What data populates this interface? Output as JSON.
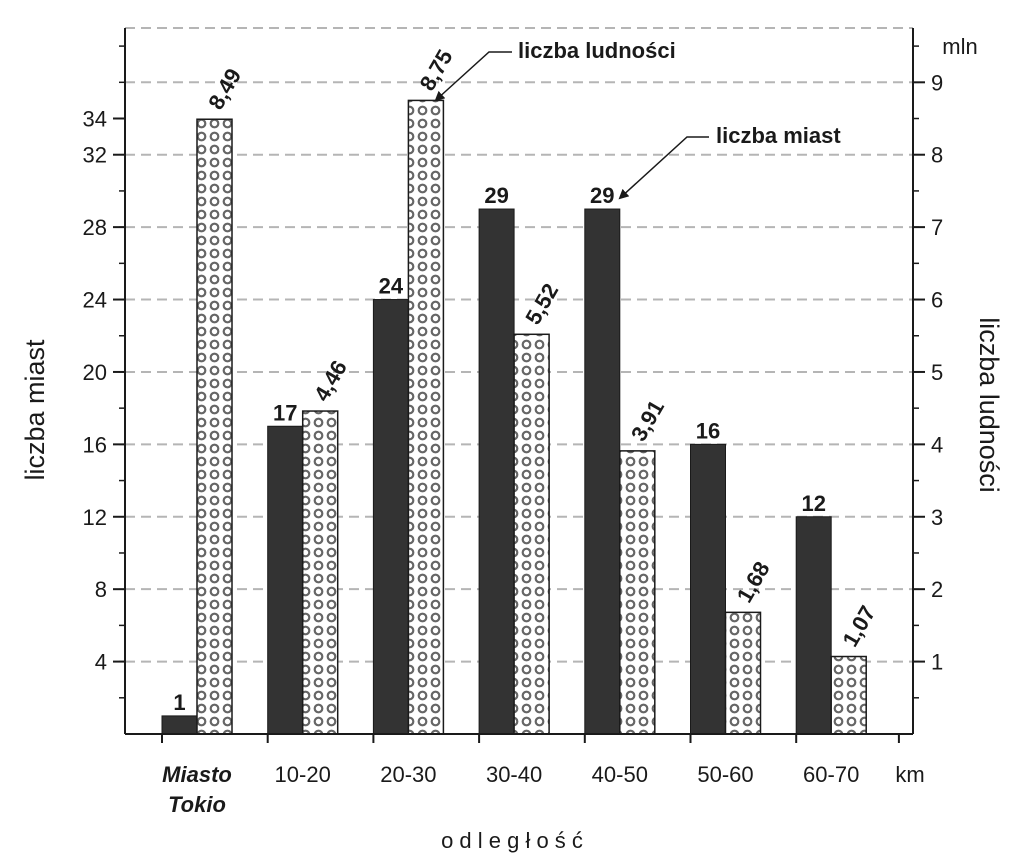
{
  "chart_data": {
    "type": "bar",
    "categories": [
      "Miasto Tokio",
      "10-20",
      "20-30",
      "30-40",
      "40-50",
      "50-60",
      "60-70"
    ],
    "category_lines": [
      [
        "Miasto",
        "Tokio"
      ],
      [
        "10-20"
      ],
      [
        "20-30"
      ],
      [
        "30-40"
      ],
      [
        "40-50"
      ],
      [
        "50-60"
      ],
      [
        "60-70"
      ]
    ],
    "series": [
      {
        "name": "liczba miast",
        "axis": "left",
        "color": "#333333",
        "values": [
          1,
          17,
          24,
          29,
          29,
          16,
          12
        ],
        "labels": [
          "1",
          "17",
          "24",
          "29",
          "29",
          "16",
          "12"
        ]
      },
      {
        "name": "liczba ludności",
        "axis": "right",
        "pattern": "circles",
        "values": [
          8.49,
          4.46,
          8.75,
          5.52,
          3.91,
          1.68,
          1.07
        ],
        "labels": [
          "8,49",
          "4,46",
          "8,75",
          "5,52",
          "3,91",
          "1,68",
          "1,07"
        ]
      }
    ],
    "xlabel": "o d l e g ł o ś ć",
    "x_unit": "km",
    "ylabel_left": "liczba miast",
    "ylabel_right": "liczba ludności",
    "y_unit_right": "mln",
    "ylim_left": [
      0,
      39
    ],
    "ylim_right": [
      0,
      9.75
    ],
    "yticks_left": [
      4,
      8,
      12,
      16,
      20,
      24,
      28,
      32,
      34
    ],
    "yticks_right": [
      1,
      2,
      3,
      4,
      5,
      6,
      7,
      8,
      9
    ],
    "grid": true,
    "legend_annotations": [
      {
        "text": "liczba ludności",
        "points_to": "liczba ludności",
        "category": "20-30"
      },
      {
        "text": "liczba miast",
        "points_to": "liczba miast",
        "category": "40-50"
      }
    ]
  }
}
